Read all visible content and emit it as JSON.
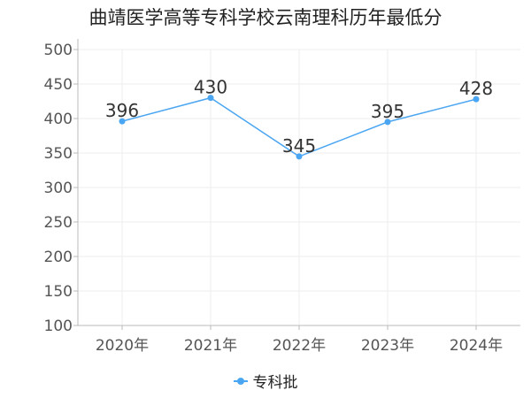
{
  "chart_data": {
    "type": "line",
    "title": "曲靖医学高等专科学校云南理科历年最低分",
    "xlabel": "",
    "ylabel": "",
    "categories": [
      "2020年",
      "2021年",
      "2022年",
      "2023年",
      "2024年"
    ],
    "series": [
      {
        "name": "专科批",
        "values": [
          396,
          430,
          345,
          395,
          428
        ],
        "color": "#4aa6f2"
      }
    ],
    "ylim": [
      100,
      500
    ],
    "yticks": [
      100,
      150,
      200,
      250,
      300,
      350,
      400,
      450,
      500
    ],
    "grid": true,
    "legend": "bottom-center"
  }
}
